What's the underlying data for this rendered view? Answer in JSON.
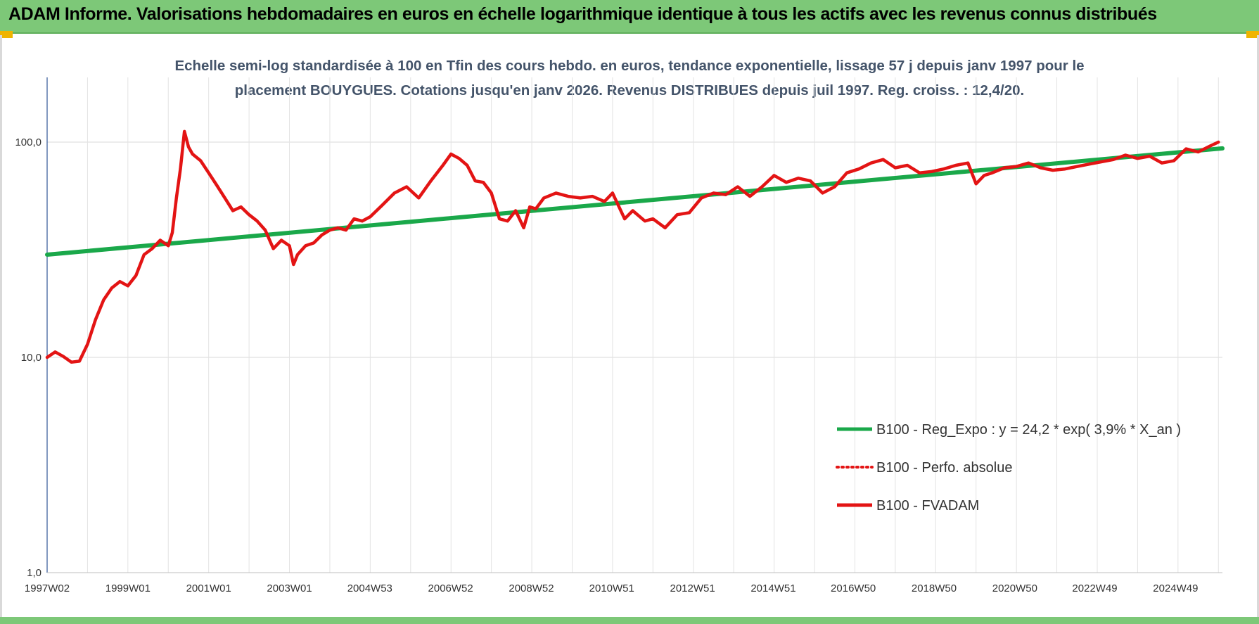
{
  "header": {
    "title": "ADAM Informe. Valorisations hebdomadaires en euros en échelle logarithmique identique à tous les actifs avec les revenus connus distribués"
  },
  "chart_data": {
    "type": "line",
    "title": "Echelle semi-log standardisée à 100 en Tfin des cours hebdo. en euros, tendance exponentielle, lissage 57 j depuis janv 1997 pour le placement BOUYGUES. Cotations jusqu'en janv 2026. Revenus DISTRIBUES depuis juil 1997. Reg. croiss. : 12,4/20.",
    "y_scale": "log",
    "ylim": [
      1,
      180
    ],
    "y_ticks": [
      {
        "value": 1,
        "label": "1,0"
      },
      {
        "value": 10,
        "label": "10,0"
      },
      {
        "value": 100,
        "label": "100,0"
      }
    ],
    "xlim": [
      1997.0,
      2026.1
    ],
    "x_ticks": [
      {
        "value": 1997.0,
        "label": "1997W02"
      },
      {
        "value": 1999.0,
        "label": "1999W01"
      },
      {
        "value": 2001.0,
        "label": "2001W01"
      },
      {
        "value": 2003.0,
        "label": "2003W01"
      },
      {
        "value": 2004.99,
        "label": "2004W53"
      },
      {
        "value": 2006.99,
        "label": "2006W52"
      },
      {
        "value": 2008.99,
        "label": "2008W52"
      },
      {
        "value": 2010.98,
        "label": "2010W51"
      },
      {
        "value": 2012.98,
        "label": "2012W51"
      },
      {
        "value": 2014.98,
        "label": "2014W51"
      },
      {
        "value": 2016.96,
        "label": "2016W50"
      },
      {
        "value": 2018.96,
        "label": "2018W50"
      },
      {
        "value": 2020.96,
        "label": "2020W50"
      },
      {
        "value": 2022.94,
        "label": "2022W49"
      },
      {
        "value": 2024.94,
        "label": "2024W49"
      }
    ],
    "grid": true,
    "legend_position": "right",
    "series": [
      {
        "name": "B100 - Reg_Expo : y = 24,2 * exp( 3,9% *  X_an )",
        "color": "#1aa84a",
        "style": "solid",
        "x": [
          1997.0,
          2026.1
        ],
        "y": [
          30.0,
          93.5
        ]
      },
      {
        "name": "B100 - Perfo. absolue",
        "color": "#e31414",
        "style": "dotted",
        "x": [],
        "y": []
      },
      {
        "name": "B100 - FVADAM",
        "color": "#e31414",
        "style": "solid",
        "x": [
          1997.0,
          1997.2,
          1997.4,
          1997.6,
          1997.8,
          1998.0,
          1998.2,
          1998.4,
          1998.6,
          1998.8,
          1999.0,
          1999.2,
          1999.4,
          1999.6,
          1999.8,
          2000.0,
          2000.1,
          2000.2,
          2000.3,
          2000.4,
          2000.5,
          2000.6,
          2000.8,
          2001.0,
          2001.2,
          2001.4,
          2001.6,
          2001.8,
          2002.0,
          2002.2,
          2002.4,
          2002.6,
          2002.8,
          2003.0,
          2003.1,
          2003.2,
          2003.4,
          2003.6,
          2003.8,
          2004.0,
          2004.2,
          2004.4,
          2004.6,
          2004.8,
          2005.0,
          2005.3,
          2005.6,
          2005.9,
          2006.2,
          2006.5,
          2006.8,
          2007.0,
          2007.2,
          2007.4,
          2007.6,
          2007.8,
          2008.0,
          2008.2,
          2008.4,
          2008.6,
          2008.8,
          2008.95,
          2009.1,
          2009.3,
          2009.6,
          2009.9,
          2010.2,
          2010.5,
          2010.8,
          2011.0,
          2011.3,
          2011.5,
          2011.8,
          2012.0,
          2012.3,
          2012.6,
          2012.9,
          2013.2,
          2013.5,
          2013.8,
          2014.1,
          2014.4,
          2014.7,
          2015.0,
          2015.3,
          2015.6,
          2015.9,
          2016.2,
          2016.5,
          2016.8,
          2017.1,
          2017.4,
          2017.7,
          2018.0,
          2018.3,
          2018.6,
          2018.9,
          2019.2,
          2019.5,
          2019.8,
          2020.0,
          2020.2,
          2020.4,
          2020.7,
          2021.0,
          2021.3,
          2021.6,
          2021.9,
          2022.2,
          2022.5,
          2022.8,
          2023.1,
          2023.4,
          2023.7,
          2024.0,
          2024.3,
          2024.6,
          2024.9,
          2025.2,
          2025.5,
          2025.8,
          2026.0
        ],
        "y": [
          10.0,
          10.6,
          10.1,
          9.5,
          9.6,
          11.5,
          15.0,
          18.5,
          21.0,
          22.5,
          21.5,
          24.0,
          30.0,
          32.0,
          35.0,
          33.0,
          38.0,
          55.0,
          75.0,
          112.0,
          95.0,
          88.0,
          82.0,
          72.0,
          63.0,
          55.0,
          48.0,
          50.0,
          46.0,
          43.0,
          39.0,
          32.0,
          35.0,
          33.0,
          27.0,
          30.0,
          33.0,
          34.0,
          37.0,
          39.0,
          40.0,
          39.0,
          44.0,
          43.0,
          45.0,
          51.0,
          58.0,
          62.0,
          55.0,
          66.0,
          78.0,
          88.0,
          84.0,
          78.0,
          66.0,
          65.0,
          58.0,
          44.0,
          43.0,
          48.0,
          40.0,
          50.0,
          49.0,
          55.0,
          58.0,
          56.0,
          55.0,
          56.0,
          53.0,
          58.0,
          44.0,
          48.0,
          43.0,
          44.0,
          40.0,
          46.0,
          47.0,
          55.0,
          58.0,
          57.0,
          62.0,
          56.0,
          62.0,
          70.0,
          65.0,
          68.0,
          66.0,
          58.0,
          62.0,
          72.0,
          75.0,
          80.0,
          83.0,
          76.0,
          78.0,
          72.0,
          73.0,
          75.0,
          78.0,
          80.0,
          64.0,
          70.0,
          72.0,
          76.0,
          77.0,
          80.0,
          76.0,
          74.0,
          75.0,
          77.0,
          79.0,
          81.0,
          83.0,
          87.0,
          84.0,
          86.0,
          80.0,
          82.0,
          93.0,
          90.0,
          96.0,
          100.0
        ]
      }
    ]
  }
}
